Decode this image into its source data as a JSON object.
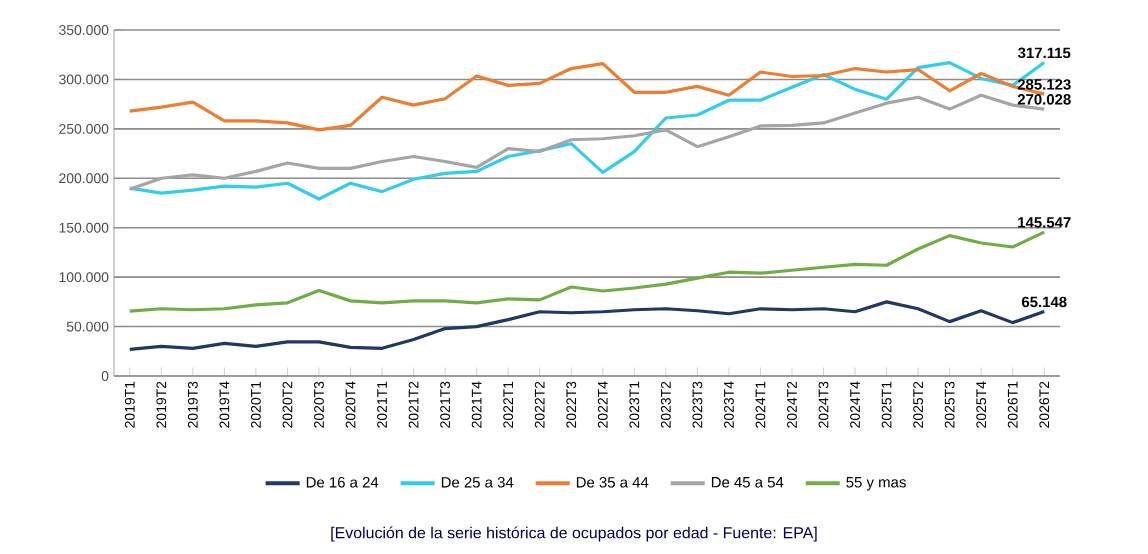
{
  "chart_data": {
    "type": "line",
    "categories": [
      "2019T1",
      "2019T2",
      "2019T3",
      "2019T4",
      "2020T1",
      "2020T2",
      "2020T3",
      "2020T4",
      "2021T1",
      "2021T2",
      "2021T3",
      "2021T4",
      "2022T1",
      "2022T2",
      "2022T3",
      "2022T4",
      "2023T1",
      "2023T2",
      "2023T3",
      "2023T4",
      "2024T1",
      "2024T2",
      "2024T3",
      "2024T4",
      "2025T1",
      "2025T2",
      "2025T3",
      "2025T4",
      "2026T1",
      "2026T2"
    ],
    "series": [
      {
        "name": "De 16 a 24",
        "color": "#1f3864",
        "values": [
          27000,
          30000,
          28000,
          33000,
          30000,
          34500,
          34500,
          29000,
          28000,
          37000,
          48000,
          50000,
          57000,
          65000,
          64000,
          65000,
          67000,
          68000,
          66000,
          63000,
          68000,
          67000,
          68000,
          65000,
          75000,
          68000,
          55000,
          66000,
          54000,
          65148
        ],
        "value_labels": [
          null,
          null,
          null,
          null,
          null,
          null,
          null,
          null,
          null,
          null,
          null,
          null,
          null,
          null,
          null,
          null,
          null,
          null,
          null,
          null,
          null,
          null,
          null,
          null,
          null,
          null,
          null,
          null,
          null,
          "65.148"
        ]
      },
      {
        "name": "De 25 a 34",
        "color": "#33ccee",
        "values": [
          190000,
          185000,
          188000,
          192000,
          191000,
          195000,
          179000,
          195000,
          186500,
          199000,
          205000,
          207000,
          222000,
          228000,
          235000,
          206000,
          227000,
          261000,
          264000,
          279000,
          279000,
          292000,
          305000,
          290000,
          280000,
          312000,
          317000,
          301000,
          294000,
          317115
        ],
        "value_labels": [
          null,
          null,
          null,
          null,
          null,
          null,
          null,
          null,
          null,
          null,
          null,
          null,
          null,
          null,
          null,
          null,
          null,
          null,
          null,
          null,
          null,
          null,
          null,
          null,
          null,
          null,
          null,
          null,
          null,
          "317.115"
        ]
      },
      {
        "name": "De 35 a 44",
        "color": "#ed7d31",
        "values": [
          268000,
          272000,
          277000,
          258000,
          258000,
          256000,
          249000,
          253500,
          282000,
          274000,
          280500,
          303500,
          294000,
          296000,
          311000,
          316000,
          287000,
          287000,
          293000,
          284000,
          307500,
          303000,
          304000,
          311000,
          307500,
          310000,
          288500,
          306000,
          293000,
          285123
        ],
        "value_labels": [
          null,
          null,
          null,
          null,
          null,
          null,
          null,
          null,
          null,
          null,
          null,
          null,
          null,
          null,
          null,
          null,
          null,
          null,
          null,
          null,
          null,
          null,
          null,
          null,
          null,
          null,
          null,
          null,
          null,
          "285.123"
        ]
      },
      {
        "name": "De 45 a 54",
        "color": "#a5a5a5",
        "values": [
          189000,
          200000,
          203500,
          200000,
          207000,
          215500,
          210000,
          210000,
          217000,
          222000,
          217000,
          211000,
          230000,
          227000,
          239000,
          240000,
          243000,
          249000,
          232000,
          242000,
          253000,
          253500,
          256000,
          266000,
          276000,
          282000,
          270000,
          284000,
          274000,
          270028
        ],
        "value_labels": [
          null,
          null,
          null,
          null,
          null,
          null,
          null,
          null,
          null,
          null,
          null,
          null,
          null,
          null,
          null,
          null,
          null,
          null,
          null,
          null,
          null,
          null,
          null,
          null,
          null,
          null,
          null,
          null,
          null,
          "270.028"
        ]
      },
      {
        "name": "55 y mas",
        "color": "#70ad47",
        "values": [
          65600,
          68000,
          67000,
          68000,
          72000,
          74000,
          86500,
          76000,
          74000,
          76000,
          76000,
          74000,
          78000,
          77000,
          90000,
          86000,
          89000,
          93000,
          99000,
          105000,
          104000,
          107000,
          110000,
          113000,
          112000,
          128500,
          142000,
          134500,
          130500,
          145547
        ],
        "value_labels": [
          null,
          null,
          null,
          null,
          null,
          null,
          null,
          null,
          null,
          null,
          null,
          null,
          null,
          null,
          null,
          null,
          null,
          null,
          null,
          null,
          null,
          null,
          null,
          null,
          null,
          null,
          null,
          null,
          null,
          "145.547"
        ]
      }
    ],
    "ylim": [
      0,
      350000
    ],
    "yticks": [
      {
        "value": 0,
        "label": "0"
      },
      {
        "value": 50000,
        "label": "50.000"
      },
      {
        "value": 100000,
        "label": "100.000"
      },
      {
        "value": 150000,
        "label": "150.000"
      },
      {
        "value": 200000,
        "label": "200.000"
      },
      {
        "value": 250000,
        "label": "250.000"
      },
      {
        "value": 300000,
        "label": "300.000"
      },
      {
        "value": 350000,
        "label": "350.000"
      }
    ],
    "grid": "y",
    "legend": "bottom",
    "marker": "none",
    "line_style": "solid",
    "annotations": [
      "[Evolución de la serie histórica de ocupados por edad - Fuente: EPA]"
    ]
  }
}
